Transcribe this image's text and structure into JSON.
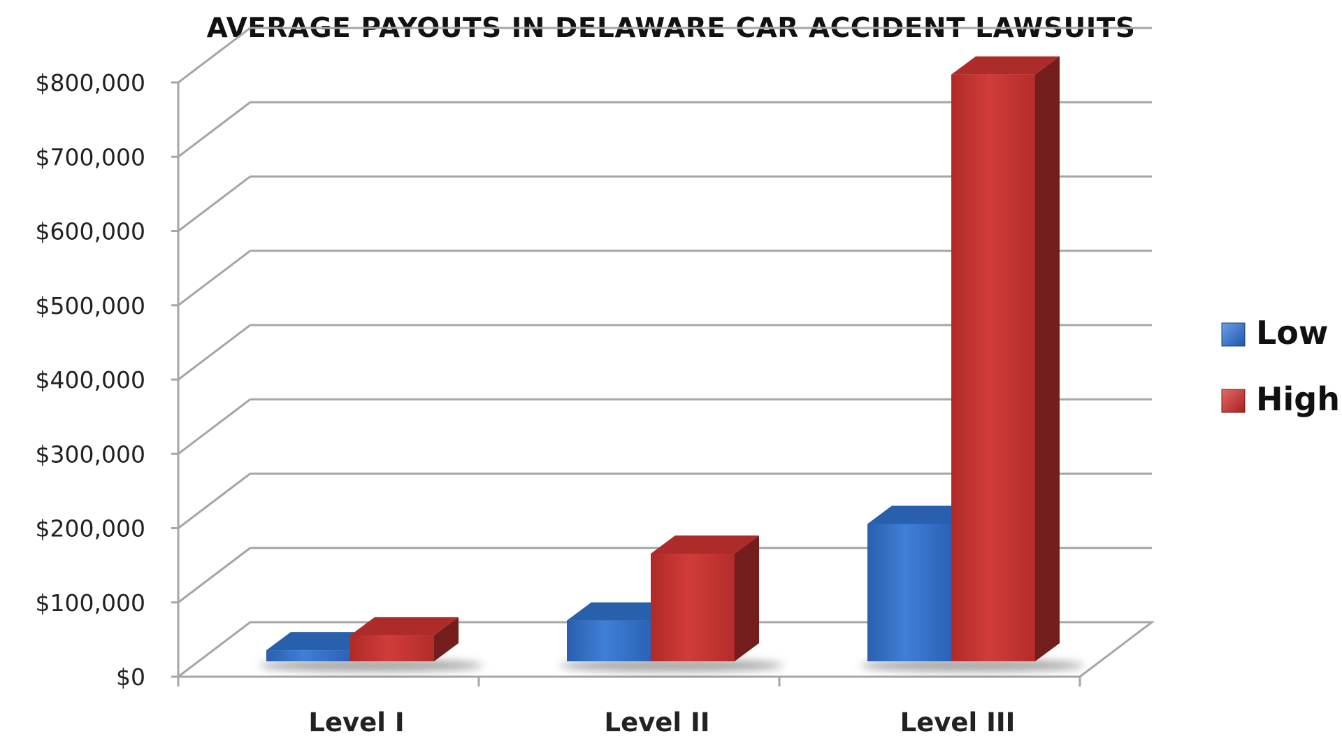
{
  "chart_data": {
    "type": "bar",
    "title": "AVERAGE PAYOUTS IN DELAWARE CAR ACCIDENT LAWSUITS",
    "categories": [
      "Level I",
      "Level II",
      "Level III"
    ],
    "series": [
      {
        "name": "Low",
        "values": [
          15000,
          55000,
          185000
        ],
        "color": "#2E6BC0"
      },
      {
        "name": "High",
        "values": [
          35000,
          145000,
          790000
        ],
        "color": "#C0302E"
      }
    ],
    "yticks": [
      "$0",
      "$100,000",
      "$200,000",
      "$300,000",
      "$400,000",
      "$500,000",
      "$600,000",
      "$700,000",
      "$800,000"
    ],
    "ylim": [
      0,
      800000
    ],
    "xlabel": "",
    "ylabel": "",
    "grid": true,
    "legend_position": "right",
    "style": "3d-clustered-column"
  }
}
